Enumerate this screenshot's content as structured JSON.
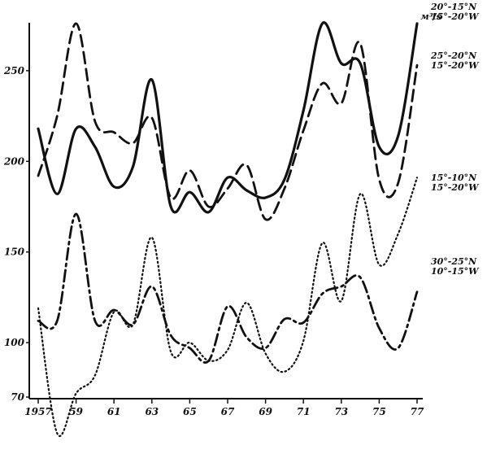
{
  "chart_data": {
    "type": "line",
    "title": "",
    "xlabel": "",
    "ylabel": "",
    "unit_label": "м³/s",
    "xlim": [
      1957,
      1977
    ],
    "ylim": [
      70,
      280
    ],
    "x_ticks": [
      1957,
      1959,
      1961,
      1963,
      1965,
      1967,
      1969,
      1971,
      1973,
      1975,
      1977
    ],
    "x_tick_labels": [
      "1957",
      "59",
      "61",
      "63",
      "65",
      "67",
      "69",
      "71",
      "73",
      "75",
      "77"
    ],
    "y_ticks": [
      70,
      100,
      150,
      200,
      250
    ],
    "y_tick_labels": [
      "70",
      "100",
      "150",
      "200",
      "250"
    ],
    "grid": false,
    "legend_placement": "right, next to each line",
    "series": [
      {
        "name": "20°-15°N 15°-20°W",
        "style": "solid",
        "x": [
          1957,
          1958,
          1959,
          1960,
          1961,
          1962,
          1963,
          1964,
          1965,
          1966,
          1967,
          1968,
          1969,
          1970,
          1971,
          1972,
          1973,
          1974,
          1975,
          1976,
          1977
        ],
        "values": [
          218,
          182,
          218,
          208,
          186,
          197,
          245,
          175,
          183,
          172,
          191,
          184,
          180,
          190,
          228,
          276,
          254,
          254,
          208,
          214,
          276
        ]
      },
      {
        "name": "25°-20°N 15°-20°W",
        "style": "dashed",
        "x": [
          1957,
          1958,
          1959,
          1960,
          1961,
          1962,
          1963,
          1964,
          1965,
          1966,
          1967,
          1968,
          1969,
          1970,
          1971,
          1972,
          1973,
          1974,
          1975,
          1976,
          1977
        ],
        "values": [
          192,
          225,
          276,
          222,
          216,
          210,
          224,
          180,
          195,
          175,
          185,
          198,
          168,
          185,
          217,
          243,
          232,
          265,
          190,
          188,
          253
        ]
      },
      {
        "name": "15°-10°N 15°-20°W",
        "style": "dotted",
        "x": [
          1957,
          1958,
          1959,
          1960,
          1961,
          1962,
          1963,
          1964,
          1965,
          1966,
          1967,
          1968,
          1969,
          1970,
          1971,
          1972,
          1973,
          1974,
          1975,
          1976,
          1977
        ],
        "values": [
          119,
          50,
          72,
          82,
          117,
          110,
          158,
          95,
          100,
          90,
          96,
          122,
          94,
          84,
          101,
          155,
          123,
          182,
          143,
          160,
          191
        ]
      },
      {
        "name": "30°-25°N 10°-15°W",
        "style": "dashdot",
        "x": [
          1957,
          1958,
          1959,
          1960,
          1961,
          1962,
          1963,
          1964,
          1965,
          1966,
          1967,
          1968,
          1969,
          1970,
          1971,
          1972,
          1973,
          1974,
          1975,
          1976,
          1977
        ],
        "values": [
          112,
          112,
          171,
          112,
          118,
          110,
          131,
          104,
          97,
          90,
          120,
          103,
          97,
          113,
          111,
          127,
          131,
          136,
          108,
          97,
          128
        ]
      }
    ],
    "legend": [
      {
        "line1": "20°-15°N",
        "line2": "15°-20°W"
      },
      {
        "line1": "25°-20°N",
        "line2": "15°-20°W"
      },
      {
        "line1": "15°-10°N",
        "line2": "15°-20°W"
      },
      {
        "line1": "30°-25°N",
        "line2": "10°-15°W"
      }
    ]
  }
}
